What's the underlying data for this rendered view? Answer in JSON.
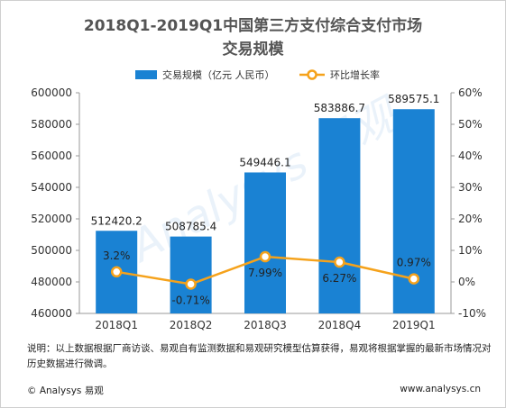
{
  "title_line1": "2018Q1-2019Q1中国第三方支付综合支付市场",
  "title_line2": "交易规模",
  "note": "说明：以上数据根据厂商访谈、易观自有监测数据和易观研究模型估算获得，易观将根据掌握的最新市场情况对历史数据进行微调。",
  "footer_left": "© Analysys 易观",
  "footer_right": "www.analysys.cn",
  "watermark": "Analysys 易观",
  "colors": {
    "bar": "#1a82d3",
    "line": "#f5a21b",
    "text": "#333333"
  },
  "chart_data": {
    "type": "bar",
    "categories": [
      "2018Q1",
      "2018Q2",
      "2018Q3",
      "2018Q4",
      "2019Q1"
    ],
    "series": [
      {
        "name": "交易规模（亿元 人民币）",
        "type": "bar",
        "axis": "left",
        "values": [
          512420.2,
          508785.4,
          549446.1,
          583886.7,
          589575.1
        ],
        "labels": [
          "512420.2",
          "508785.4",
          "549446.1",
          "583886.7",
          "589575.1"
        ]
      },
      {
        "name": "环比增长率",
        "type": "line",
        "axis": "right",
        "values": [
          3.2,
          -0.71,
          7.99,
          6.27,
          0.97
        ],
        "labels": [
          "3.2%",
          "-0.71%",
          "7.99%",
          "6.27%",
          "0.97%"
        ]
      }
    ],
    "y_left": {
      "range": [
        460000,
        600000
      ],
      "ticks": [
        460000,
        480000,
        500000,
        520000,
        540000,
        560000,
        580000,
        600000
      ],
      "tick_labels": [
        "460000",
        "480000",
        "500000",
        "520000",
        "540000",
        "560000",
        "580000",
        "600000"
      ]
    },
    "y_right": {
      "range": [
        -10,
        60
      ],
      "ticks": [
        -10,
        0,
        10,
        20,
        30,
        40,
        50,
        60
      ],
      "tick_labels": [
        "-10%",
        "0%",
        "10%",
        "20%",
        "30%",
        "40%",
        "50%",
        "60%"
      ]
    },
    "legend_position": "top",
    "grid": false
  }
}
